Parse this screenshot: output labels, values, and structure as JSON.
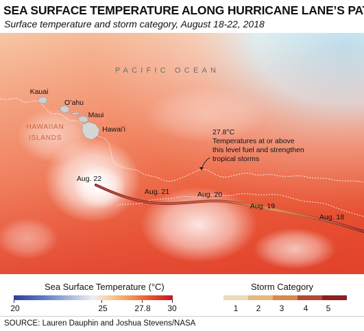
{
  "header": {
    "title": "SEA SURFACE TEMPERATURE ALONG HURRICANE LANE’S PATH",
    "subtitle": "Surface temperature and storm category, August 18-22, 2018"
  },
  "map": {
    "ocean_label": "PACIFIC OCEAN",
    "region_label_line1": "HAWAIIAN",
    "region_label_line2": "ISLANDS",
    "islands": [
      {
        "name": "Kauai"
      },
      {
        "name": "O’ahu"
      },
      {
        "name": "Maui"
      },
      {
        "name": "Hawai’i"
      }
    ],
    "threshold_annotation": {
      "value": "27.8°C",
      "text_line1": "Temperatures at or above",
      "text_line2": "this level fuel and strengthen",
      "text_line3": "tropical storms"
    },
    "track_dates": [
      {
        "label": "Aug. 22"
      },
      {
        "label": "Aug. 21"
      },
      {
        "label": "Aug. 20"
      },
      {
        "label": "Aug. 19"
      },
      {
        "label": "Aug. 18"
      }
    ]
  },
  "legend": {
    "sst": {
      "title": "Sea Surface Temperature (°C)",
      "ticks": [
        "20",
        "25",
        "27.8",
        "30"
      ],
      "colors": [
        "#2c3f9e",
        "#a9bde0",
        "#eef0f2",
        "#f08a48",
        "#c4172a"
      ]
    },
    "storm": {
      "title": "Storm Category",
      "categories": [
        "1",
        "2",
        "3",
        "4",
        "5"
      ],
      "colors": [
        "#eadcb8",
        "#e6b97c",
        "#d8894d",
        "#b24a33",
        "#8a1f20"
      ]
    }
  },
  "source": "SOURCE: Lauren Dauphin and Joshua Stevens/NASA"
}
